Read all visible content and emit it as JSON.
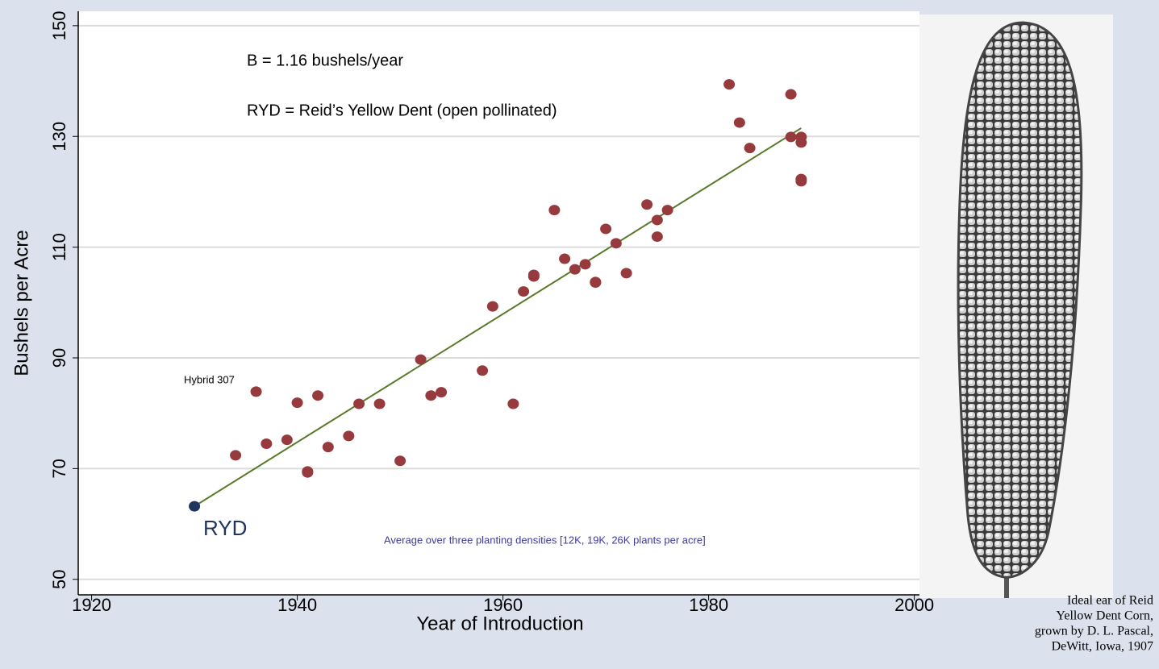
{
  "chart_data": {
    "type": "scatter",
    "x_label": "Year of Introduction",
    "y_label": "Bushels per Acre",
    "xlim": [
      1918.7,
      2000.5
    ],
    "ylim": [
      47.2,
      152.6
    ],
    "xticks": [
      1920,
      1940,
      1960,
      1980,
      2000
    ],
    "yticks": [
      50,
      70,
      90,
      110,
      130,
      150
    ],
    "grid": true,
    "series": [
      {
        "color": "#973a3e",
        "x": [
          1934,
          1936,
          1937,
          1939,
          1940,
          1941,
          1941,
          1942,
          1943,
          1945,
          1946,
          1948,
          1950,
          1952,
          1953,
          1954,
          1958,
          1959,
          1961,
          1962,
          1963,
          1963,
          1965,
          1966,
          1967,
          1968,
          1969,
          1969,
          1970,
          1971,
          1972,
          1974,
          1975,
          1975,
          1976,
          1982,
          1983,
          1984,
          1988,
          1988,
          1989,
          1989,
          1989,
          1989
        ],
        "values": [
          72.4,
          83.9,
          74.5,
          75.2,
          81.9,
          69.5,
          69.3,
          83.2,
          73.9,
          75.9,
          81.7,
          81.7,
          71.4,
          89.7,
          83.2,
          83.8,
          87.7,
          99.3,
          81.7,
          102.0,
          104.7,
          105.0,
          116.7,
          107.9,
          106.0,
          106.9,
          103.7,
          103.6,
          113.3,
          110.7,
          105.3,
          117.7,
          111.9,
          114.9,
          116.7,
          139.4,
          132.5,
          127.9,
          137.6,
          129.9,
          129.9,
          128.9,
          122.3,
          121.9
        ]
      },
      {
        "color": "#22335f",
        "x": [
          1930
        ],
        "values": [
          63.2
        ]
      },
      {
        "type": "line",
        "color": "#5a7a2a",
        "x": [
          1930,
          1989
        ],
        "values": [
          63.2,
          131.5
        ]
      }
    ],
    "annotations": [
      "B = 1.16 bushels/year",
      "RYD = Reid’s Yellow Dent (open pollinated)",
      "Hybrid 307",
      "RYD",
      "Average over three planting densities [12K, 19K, 26K plants per acre]"
    ]
  },
  "image_caption": [
    "Ideal ear of Reid",
    "Yellow Dent Corn,",
    "grown by D. L. Pascal,",
    "DeWitt, Iowa, 1907"
  ]
}
